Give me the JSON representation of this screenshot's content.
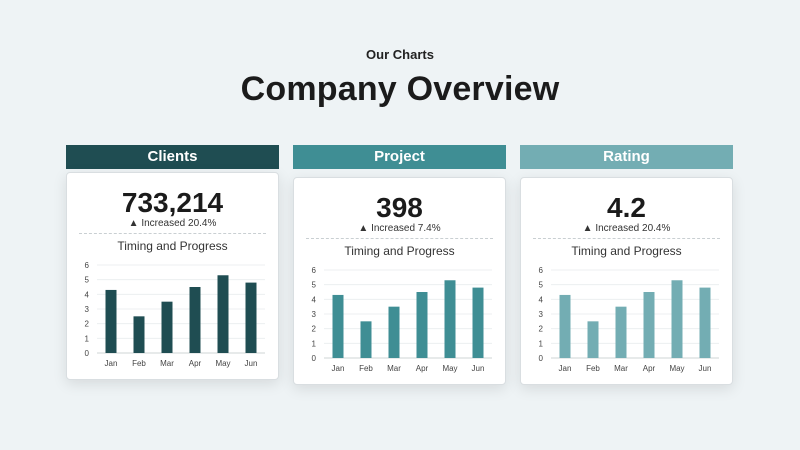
{
  "page": {
    "kicker": "Our Charts",
    "title": "Company Overview"
  },
  "panels": [
    {
      "header": "Clients",
      "value": "733,214",
      "delta_arrow": "▲",
      "delta_text": "Increased 20.4%",
      "color": "#1f4d52"
    },
    {
      "header": "Project",
      "value": "398",
      "delta_arrow": "▲",
      "delta_text": "Increased 7.4%",
      "color": "#3f8e94"
    },
    {
      "header": "Rating",
      "value": "4.2",
      "delta_arrow": "▲",
      "delta_text": "Increased 20.4%",
      "color": "#73adb3"
    }
  ],
  "chart_data": [
    {
      "type": "bar",
      "title": "Timing and Progress",
      "categories": [
        "Jan",
        "Feb",
        "Mar",
        "Apr",
        "May",
        "Jun"
      ],
      "values": [
        4.3,
        2.5,
        3.5,
        4.5,
        5.3,
        4.8
      ],
      "ylim": [
        0,
        6
      ],
      "yticks": [
        0,
        1,
        2,
        3,
        4,
        5,
        6
      ],
      "xlabel": "",
      "ylabel": "",
      "grid": true
    },
    {
      "type": "bar",
      "title": "Timing and Progress",
      "categories": [
        "Jan",
        "Feb",
        "Mar",
        "Apr",
        "May",
        "Jun"
      ],
      "values": [
        4.3,
        2.5,
        3.5,
        4.5,
        5.3,
        4.8
      ],
      "ylim": [
        0,
        6
      ],
      "yticks": [
        0,
        1,
        2,
        3,
        4,
        5,
        6
      ],
      "xlabel": "",
      "ylabel": "",
      "grid": true
    },
    {
      "type": "bar",
      "title": "Timing and Progress",
      "categories": [
        "Jan",
        "Feb",
        "Mar",
        "Apr",
        "May",
        "Jun"
      ],
      "values": [
        4.3,
        2.5,
        3.5,
        4.5,
        5.3,
        4.8
      ],
      "ylim": [
        0,
        6
      ],
      "yticks": [
        0,
        1,
        2,
        3,
        4,
        5,
        6
      ],
      "xlabel": "",
      "ylabel": "",
      "grid": true
    }
  ]
}
